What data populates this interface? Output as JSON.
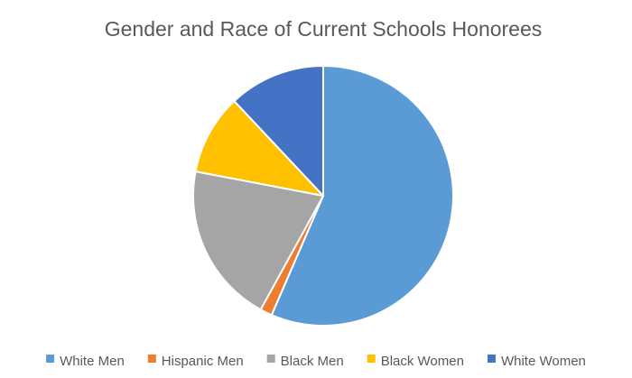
{
  "chart_data": {
    "type": "pie",
    "title": "Gender and Race of Current Schools Honorees",
    "categories": [
      "White Men",
      "Hispanic Men",
      "Black Men",
      "Black Women",
      "White Women"
    ],
    "values": [
      56.5,
      1.5,
      20.0,
      10.0,
      12.0
    ],
    "colors": [
      "#5B9BD5",
      "#ED7D31",
      "#A5A5A5",
      "#FFC000",
      "#4472C4"
    ],
    "start_angle_deg": 0,
    "direction": "clockwise",
    "legend_position": "bottom"
  }
}
